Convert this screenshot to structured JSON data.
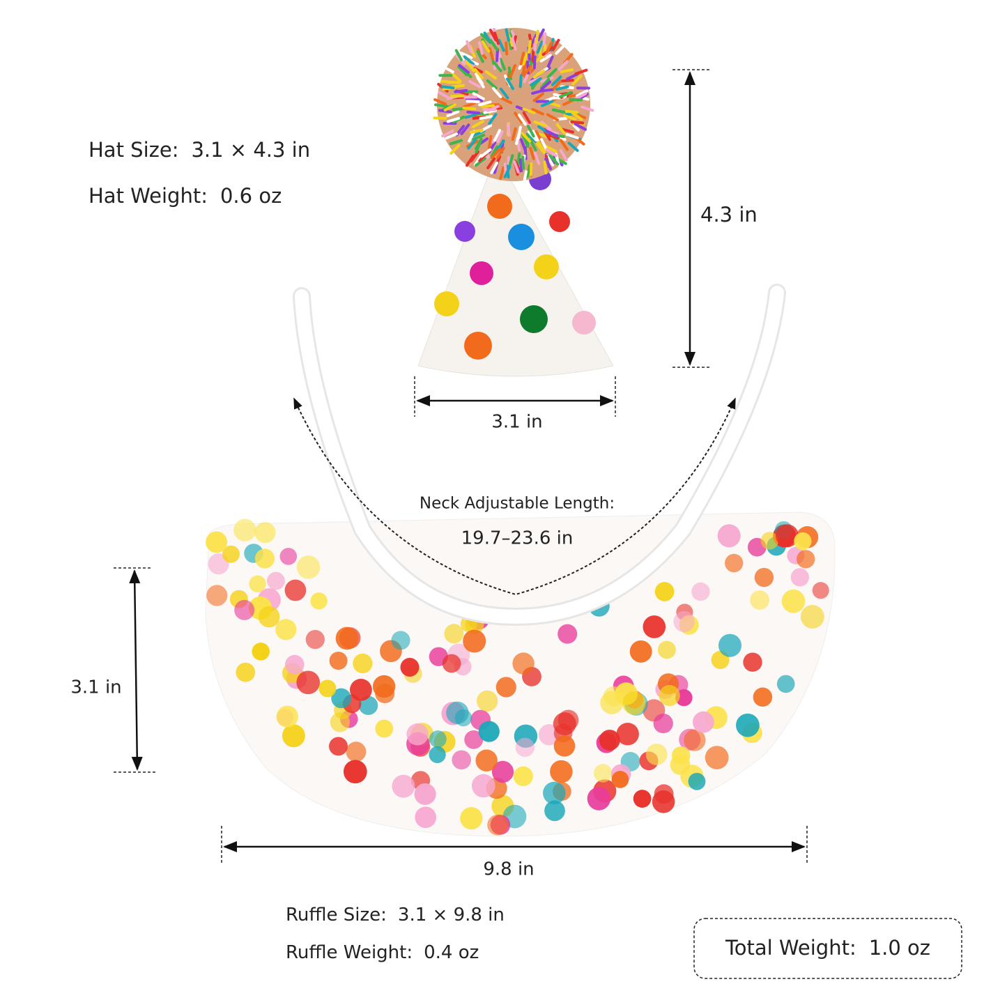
{
  "hat": {
    "size": {
      "label": "Hat Size:",
      "value": "3.1 × 4.3 in"
    },
    "weight": {
      "label": "Hat Weight:",
      "value": "0.6 oz"
    },
    "height": "4.3 in",
    "width": "3.1 in"
  },
  "neck": {
    "label": "Neck Adjustable Length:",
    "value": "19.7–23.6 in"
  },
  "ruffle": {
    "height": "3.1 in",
    "width": "9.8 in",
    "size": {
      "label": "Ruffle Size:",
      "value": "3.1 × 9.8 in"
    },
    "weight": {
      "label": "Ruffle Weight:",
      "value": "0.4 oz"
    }
  },
  "total": {
    "label": "Total Weight:",
    "value": "1.0 oz"
  }
}
